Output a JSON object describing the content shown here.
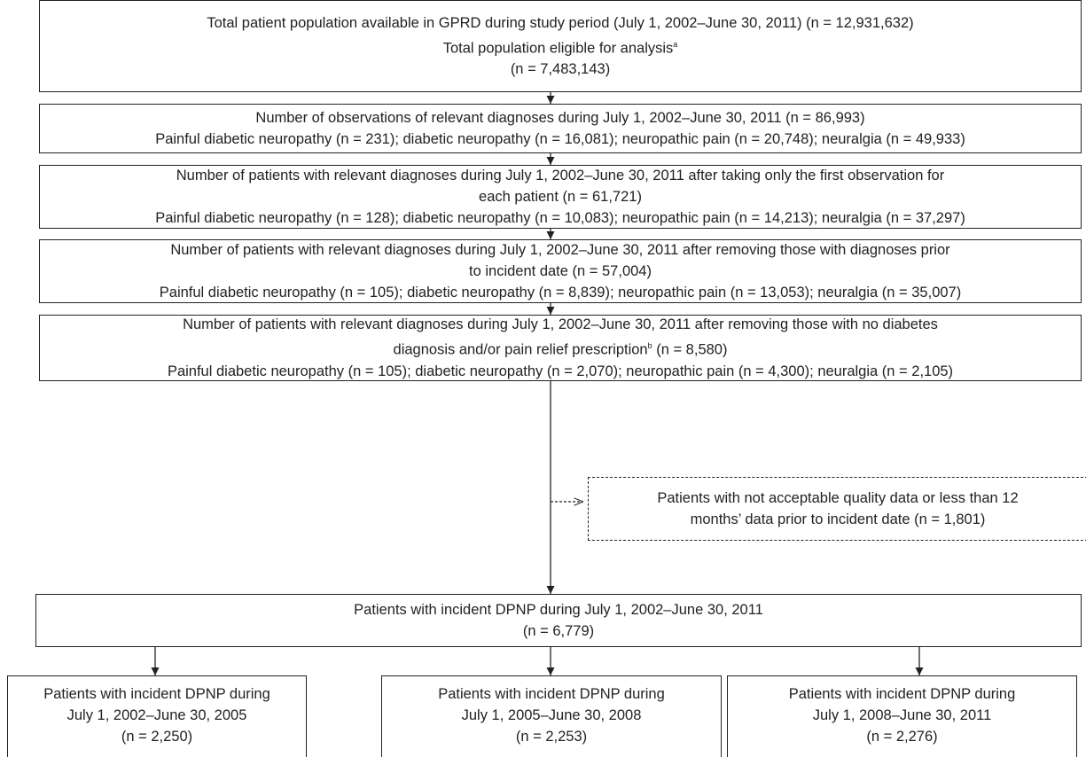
{
  "nodes": [
    {
      "lines": [
        "Total patient population available in GPRD during study period (July 1, 2002–June 30, 2011) (n = 12,931,632)",
        {
          "before": "Total population eligible for analysis",
          "sup": "a"
        },
        "(n = 7,483,143)"
      ]
    },
    {
      "lines": [
        "Number of observations of relevant diagnoses during July 1, 2002–June 30, 2011 (n = 86,993)",
        "Painful diabetic neuropathy (n = 231); diabetic neuropathy (n = 16,081); neuropathic pain (n = 20,748); neuralgia (n = 49,933)"
      ]
    },
    {
      "lines": [
        "Number of patients with relevant diagnoses during July 1, 2002–June 30, 2011 after taking only the first observation for",
        "each patient (n = 61,721)",
        "Painful diabetic neuropathy (n = 128); diabetic neuropathy (n = 10,083); neuropathic pain (n = 14,213); neuralgia (n = 37,297)"
      ]
    },
    {
      "lines": [
        "Number of patients with relevant diagnoses during July 1, 2002–June 30, 2011 after removing those with diagnoses prior",
        "to incident date (n = 57,004)",
        "Painful diabetic neuropathy (n = 105); diabetic neuropathy (n = 8,839); neuropathic pain (n = 13,053); neuralgia (n = 35,007)"
      ]
    },
    {
      "lines": [
        "Number of patients with relevant diagnoses during July 1, 2002–June 30, 2011 after removing those with no diabetes",
        {
          "before": "diagnosis and/or pain relief prescription",
          "sup": "b",
          "after": " (n = 8,580)"
        },
        "Painful diabetic neuropathy (n = 105); diabetic neuropathy (n = 2,070); neuropathic pain (n = 4,300); neuralgia (n = 2,105)"
      ]
    },
    {
      "lines": [
        "Patients with not acceptable quality data or less than 12",
        "months’ data prior to incident date (n = 1,801)"
      ]
    },
    {
      "lines": [
        "Patients with incident DPNP during July 1, 2002–June 30, 2011",
        "(n = 6,779)"
      ]
    },
    {
      "lines": [
        "Patients with incident DPNP during",
        "July 1, 2002–June 30, 2005",
        "(n = 2,250)"
      ]
    },
    {
      "lines": [
        "Patients with incident DPNP during",
        "July 1, 2005–June 30, 2008",
        "(n = 2,253)"
      ]
    },
    {
      "lines": [
        "Patients with incident DPNP during",
        "July 1, 2008–June 30, 2011",
        "(n = 2,276)"
      ]
    }
  ]
}
